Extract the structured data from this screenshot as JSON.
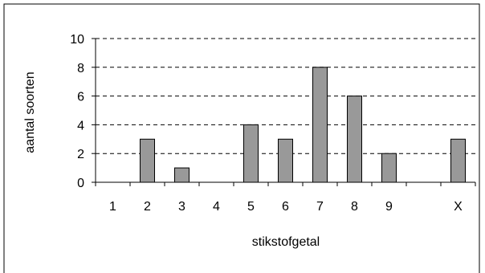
{
  "chart_data": {
    "type": "bar",
    "categories": [
      "1",
      "2",
      "3",
      "4",
      "5",
      "6",
      "7",
      "8",
      "9",
      "",
      "X"
    ],
    "values": [
      0,
      3,
      1,
      0,
      4,
      3,
      8,
      6,
      2,
      0,
      3
    ],
    "xlabel": "stikstofgetal",
    "ylabel": "aantal soorten",
    "ylim": [
      0,
      10
    ],
    "yticks": [
      "0",
      "2",
      "4",
      "6",
      "8",
      "10"
    ],
    "grid": "horizontal dashed",
    "colors": {
      "bar": "#999999",
      "bar_stroke": "#000000",
      "grid": "#000000",
      "frame": "#000000"
    }
  }
}
